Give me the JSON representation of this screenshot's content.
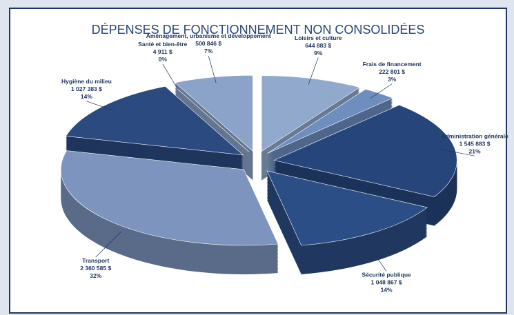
{
  "chart_data": {
    "type": "pie3d",
    "title": "DÉPENSES DE FONCTIONNEMENT NON CONSOLIDÉES",
    "categories": [
      "Loisirs et culture",
      "Frais de financement",
      "Administration générale",
      "Sécurité publique",
      "Transport",
      "Hygiène du milieu",
      "Santé et bien-être",
      "Aménagement, urbanisme et développement"
    ],
    "amount_labels": [
      "644 883 $",
      "222 801 $",
      "1 545 883 $",
      "1 048 867 $",
      "2 360 585 $",
      "1 027 383 $",
      "4 911 $",
      "500 846 $"
    ],
    "values": [
      9,
      3,
      21,
      14,
      32,
      14,
      0,
      7
    ],
    "value_labels": [
      "9%",
      "3%",
      "21%",
      "14%",
      "32%",
      "14%",
      "0%",
      "7%"
    ],
    "colors": [
      "#91a9cd",
      "#6e8ebf",
      "#25457b",
      "#2c4e86",
      "#7c94be",
      "#2a4a80",
      "#3b5b91",
      "#8ba3c9"
    ]
  }
}
